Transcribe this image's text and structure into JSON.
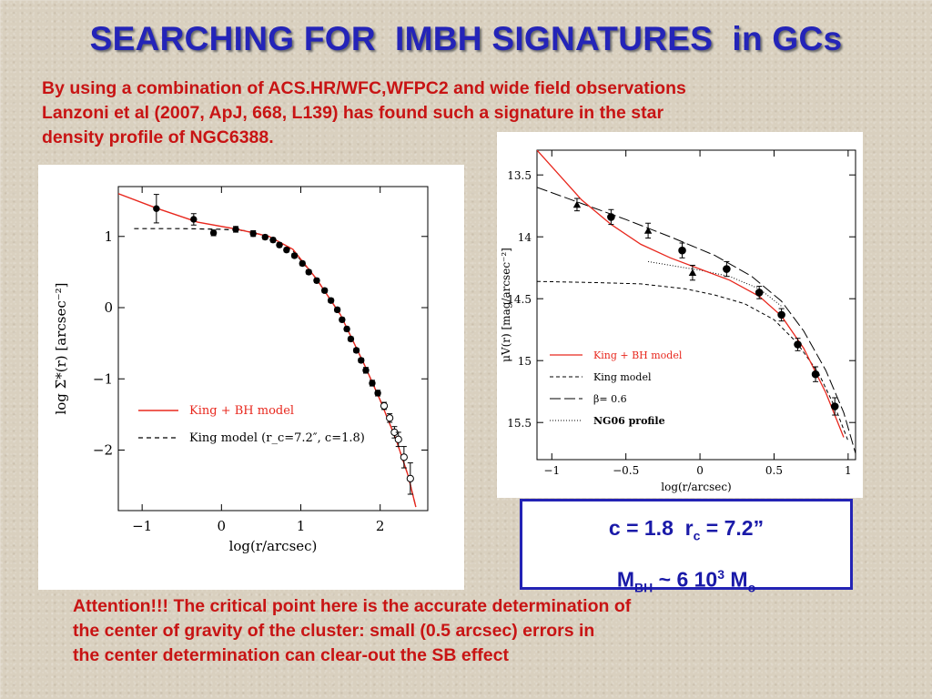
{
  "slide": {
    "title": "SEARCHING FOR  IMBH SIGNATURES  in GCs",
    "intro": "By using a combination of ACS.HR/WFC,WFPC2 and wide field observations\nLanzoni et al (2007, ApJ, 668, L139) has found such a signature in the star\ndensity profile of  NGC6388.",
    "attention": "Attention!!! The critical point here is the accurate determination of\nthe center of gravity of the cluster: small (0.5 arcsec) errors in\nthe center determination can clear-out the SB effect",
    "result": {
      "c_label": "c = 1.8",
      "rc_prefix": "r",
      "rc_sub": "c",
      "rc_value": " = 7.2”",
      "m_prefix": "M",
      "m_sub": "BH",
      "m_mid": " ~ 6 10",
      "m_sup": "3",
      "m_unit": " M",
      "m_unit_sub": "o"
    },
    "colors": {
      "title": "#2424b8",
      "text_red": "#c81414",
      "box_border": "#2323b5",
      "model_red": "#e8281e"
    }
  },
  "chart_data": [
    {
      "type": "scatter",
      "xlabel": "log(r/arcsec)",
      "ylabel": "log Σ*(r) [arcsec⁻²]",
      "xlim": [
        -1.3,
        2.6
      ],
      "ylim": [
        -2.85,
        1.7
      ],
      "xticks": [
        -1,
        0,
        1,
        2
      ],
      "xtick_labels": [
        "−1",
        "0",
        "1",
        "2"
      ],
      "yticks": [
        1,
        0,
        -1,
        -2
      ],
      "ytick_labels": [
        "1",
        "0",
        "−1",
        "−2"
      ],
      "legend": [
        "King + BH model",
        "King model (r_c=7.2″, c=1.8)"
      ],
      "legend_placement": "bottom-left",
      "points_filled": [
        {
          "x": -0.82,
          "y": 1.39,
          "err": 0.2
        },
        {
          "x": -0.35,
          "y": 1.24,
          "err": 0.08
        },
        {
          "x": -0.1,
          "y": 1.05,
          "err": 0.04
        },
        {
          "x": 0.18,
          "y": 1.1,
          "err": 0.04
        },
        {
          "x": 0.4,
          "y": 1.04,
          "err": 0.04
        },
        {
          "x": 0.55,
          "y": 0.99,
          "err": 0.03
        },
        {
          "x": 0.65,
          "y": 0.95,
          "err": 0.03
        },
        {
          "x": 0.73,
          "y": 0.88,
          "err": 0.03
        },
        {
          "x": 0.82,
          "y": 0.81,
          "err": 0.03
        },
        {
          "x": 0.92,
          "y": 0.73,
          "err": 0.03
        },
        {
          "x": 1.02,
          "y": 0.62,
          "err": 0.03
        },
        {
          "x": 1.1,
          "y": 0.5,
          "err": 0.03
        },
        {
          "x": 1.2,
          "y": 0.38,
          "err": 0.03
        },
        {
          "x": 1.3,
          "y": 0.24,
          "err": 0.03
        },
        {
          "x": 1.38,
          "y": 0.1,
          "err": 0.03
        },
        {
          "x": 1.46,
          "y": -0.03,
          "err": 0.03
        },
        {
          "x": 1.52,
          "y": -0.17,
          "err": 0.03
        },
        {
          "x": 1.58,
          "y": -0.3,
          "err": 0.03
        },
        {
          "x": 1.63,
          "y": -0.44,
          "err": 0.03
        },
        {
          "x": 1.7,
          "y": -0.6,
          "err": 0.03
        },
        {
          "x": 1.76,
          "y": -0.74,
          "err": 0.03
        },
        {
          "x": 1.82,
          "y": -0.88,
          "err": 0.04
        },
        {
          "x": 1.9,
          "y": -1.06,
          "err": 0.04
        },
        {
          "x": 1.97,
          "y": -1.2,
          "err": 0.04
        }
      ],
      "points_open": [
        {
          "x": 2.05,
          "y": -1.38,
          "err": 0.05
        },
        {
          "x": 2.12,
          "y": -1.55,
          "err": 0.06
        },
        {
          "x": 2.18,
          "y": -1.75,
          "err": 0.08
        },
        {
          "x": 2.23,
          "y": -1.85,
          "err": 0.1
        },
        {
          "x": 2.3,
          "y": -2.1,
          "err": 0.15
        },
        {
          "x": 2.38,
          "y": -2.4,
          "err": 0.22
        }
      ],
      "king_bh_model": {
        "x": [
          -1.3,
          -0.8,
          -0.3,
          0.2,
          0.6,
          0.9,
          1.2,
          1.5,
          1.8,
          2.0,
          2.2,
          2.35,
          2.45
        ],
        "y": [
          1.6,
          1.39,
          1.2,
          1.1,
          1.0,
          0.82,
          0.4,
          -0.1,
          -0.8,
          -1.3,
          -1.85,
          -2.35,
          -2.8
        ]
      },
      "king_model": {
        "x": [
          -1.1,
          -0.5,
          0.0,
          0.3,
          0.6,
          0.9,
          1.2,
          1.5,
          1.8,
          2.0,
          2.2,
          2.35,
          2.45
        ],
        "y": [
          1.11,
          1.11,
          1.1,
          1.08,
          1.0,
          0.8,
          0.4,
          -0.1,
          -0.8,
          -1.3,
          -1.85,
          -2.35,
          -2.8
        ]
      }
    },
    {
      "type": "scatter",
      "xlabel": "log(r/arcsec)",
      "ylabel": "μV(r) [mag/arcsec⁻²]",
      "xlim": [
        -1.1,
        1.05
      ],
      "ylim": [
        15.8,
        13.3
      ],
      "xticks": [
        -1,
        -0.5,
        0,
        0.5,
        1
      ],
      "xtick_labels": [
        "−1",
        "−0.5",
        "0",
        "0.5",
        "1"
      ],
      "yticks": [
        13.5,
        14,
        14.5,
        15,
        15.5
      ],
      "ytick_labels": [
        "13.5",
        "14",
        "14.5",
        "15",
        "15.5"
      ],
      "legend": [
        "King + BH model",
        "King model",
        "β= 0.6",
        "NG06 profile"
      ],
      "legend_placement": "bottom-left",
      "points_circles": [
        {
          "x": -0.6,
          "y": 13.84,
          "err": 0.06
        },
        {
          "x": -0.12,
          "y": 14.11,
          "err": 0.06
        },
        {
          "x": 0.18,
          "y": 14.26,
          "err": 0.06
        },
        {
          "x": 0.4,
          "y": 14.45,
          "err": 0.05
        },
        {
          "x": 0.55,
          "y": 14.63,
          "err": 0.05
        },
        {
          "x": 0.66,
          "y": 14.87,
          "err": 0.05
        },
        {
          "x": 0.78,
          "y": 15.11,
          "err": 0.06
        },
        {
          "x": 0.91,
          "y": 15.37,
          "err": 0.07
        }
      ],
      "points_triangles": [
        {
          "x": -0.83,
          "y": 13.74,
          "err": 0.05
        },
        {
          "x": -0.35,
          "y": 13.95,
          "err": 0.06
        },
        {
          "x": -0.05,
          "y": 14.29,
          "err": 0.06
        }
      ],
      "king_bh_model": {
        "x": [
          -1.1,
          -0.95,
          -0.8,
          -0.6,
          -0.4,
          -0.2,
          0.0,
          0.2,
          0.4,
          0.55,
          0.7,
          0.85,
          0.97
        ],
        "y": [
          13.3,
          13.5,
          13.7,
          13.9,
          14.06,
          14.17,
          14.26,
          14.35,
          14.48,
          14.64,
          14.9,
          15.26,
          15.62
        ]
      },
      "king_model": {
        "x": [
          -1.1,
          -0.7,
          -0.4,
          -0.1,
          0.1,
          0.3,
          0.5,
          0.65,
          0.8,
          0.92,
          1.0
        ],
        "y": [
          14.36,
          14.37,
          14.38,
          14.42,
          14.47,
          14.54,
          14.67,
          14.85,
          15.1,
          15.4,
          15.65
        ]
      },
      "beta_model": {
        "x": [
          -1.1,
          -0.8,
          -0.5,
          -0.2,
          0.1,
          0.35,
          0.55,
          0.7,
          0.85,
          0.97,
          1.05
        ],
        "y": [
          13.6,
          13.73,
          13.86,
          14.0,
          14.15,
          14.32,
          14.52,
          14.76,
          15.08,
          15.42,
          15.75
        ]
      },
      "ng06_profile": {
        "x": [
          -0.35,
          -0.2,
          0.0,
          0.2,
          0.4,
          0.55
        ],
        "y": [
          14.2,
          14.23,
          14.27,
          14.32,
          14.42,
          14.56
        ]
      }
    }
  ]
}
